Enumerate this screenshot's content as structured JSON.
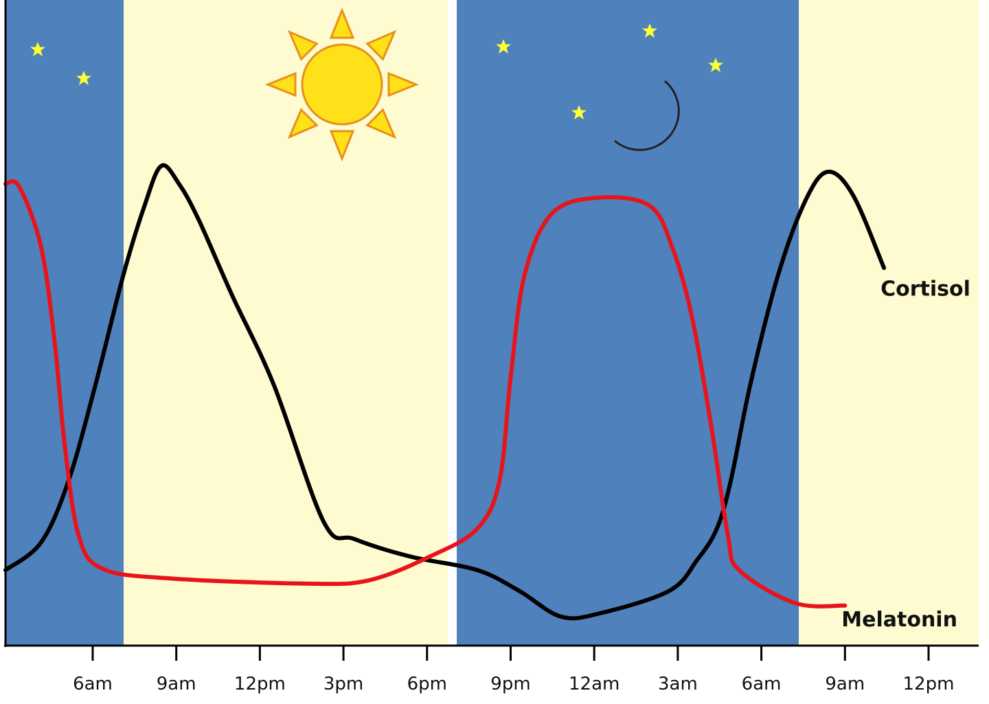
{
  "chart_data": {
    "type": "line",
    "xlim": [
      2.87,
      37.8
    ],
    "ylim": [
      0,
      100
    ],
    "xticks": [
      {
        "value": 6,
        "label": "6am"
      },
      {
        "value": 9,
        "label": "9am"
      },
      {
        "value": 12,
        "label": "12pm"
      },
      {
        "value": 15,
        "label": "3pm"
      },
      {
        "value": 18,
        "label": "6pm"
      },
      {
        "value": 21,
        "label": "9pm"
      },
      {
        "value": 24,
        "label": "12am"
      },
      {
        "value": 27,
        "label": "3am"
      },
      {
        "value": 30,
        "label": "6am"
      },
      {
        "value": 33,
        "label": "9am"
      },
      {
        "value": 36,
        "label": "12pm"
      }
    ],
    "series": [
      {
        "name": "Cortisol",
        "color": "#000000",
        "x": [
          2.87,
          4.15,
          5.13,
          6.1,
          7.1,
          7.85,
          8.46,
          9.1,
          9.8,
          11.0,
          12.5,
          14.3,
          15.4,
          17.4,
          19.8,
          21.3,
          22.8,
          24.2,
          26.7,
          27.7,
          28.4,
          28.9,
          29.6,
          30.6,
          31.6,
          32.4,
          33.3,
          34.4
        ],
        "values": [
          11.7,
          16,
          25.5,
          40.4,
          57.4,
          68,
          74.3,
          71.5,
          66,
          54.3,
          40.4,
          19.1,
          16.5,
          13.8,
          11.7,
          8.5,
          4.5,
          5,
          8.5,
          13.3,
          18.1,
          25.5,
          40.4,
          57.4,
          69.1,
          73.4,
          69.7,
          58.5
        ]
      },
      {
        "name": "Melatonin",
        "color": "#e8141b",
        "x": [
          2.87,
          3.36,
          4.15,
          4.64,
          5.0,
          5.5,
          6.36,
          8.8,
          13.7,
          15.9,
          18.1,
          19.8,
          20.6,
          21.0,
          21.5,
          22.5,
          24.2,
          26.0,
          26.8,
          27.5,
          28.2,
          28.8,
          29.2,
          31.2,
          33.0
        ],
        "values": [
          71.5,
          71.1,
          61.7,
          46.8,
          30.9,
          17,
          11.9,
          10.4,
          9.6,
          10.1,
          13.8,
          18.1,
          25.5,
          41.5,
          57.4,
          67,
          69.4,
          68.1,
          61.7,
          51.1,
          34,
          17,
          11.7,
          6.6,
          6.2
        ]
      }
    ]
  }
}
